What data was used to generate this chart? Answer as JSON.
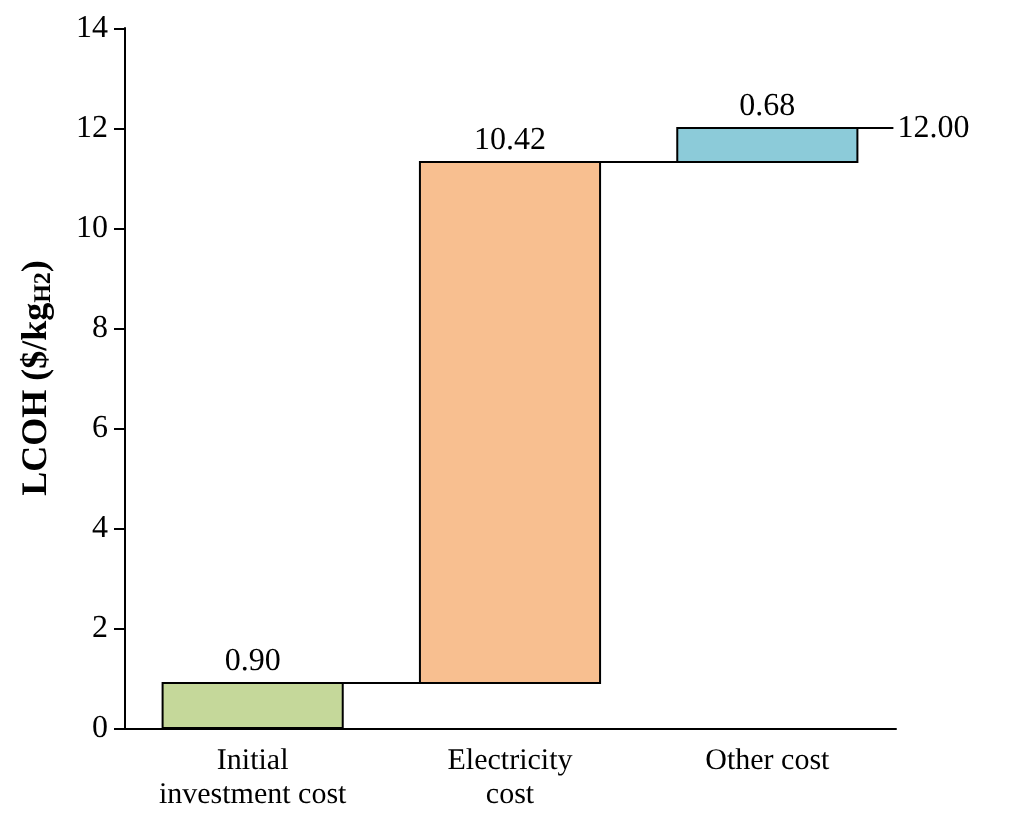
{
  "chart_data": {
    "type": "bar",
    "ylabel": "LCOH ($/kg$_{H2}$)",
    "categories": [
      "Initial\ninvestment cost",
      "Electricity\ncost",
      "Other cost"
    ],
    "values": [
      0.9,
      10.42,
      0.68
    ],
    "base": [
      0,
      0.9,
      11.32
    ],
    "colors": [
      "#c5d89a",
      "#f8bf90",
      "#8ccbd9"
    ],
    "value_labels": [
      "0.90",
      "10.42",
      "0.68"
    ],
    "ylim": [
      0,
      14
    ],
    "yticks": [
      0,
      2,
      4,
      6,
      8,
      10,
      12,
      14
    ],
    "grid": false,
    "annotations": [
      "12.00"
    ]
  }
}
